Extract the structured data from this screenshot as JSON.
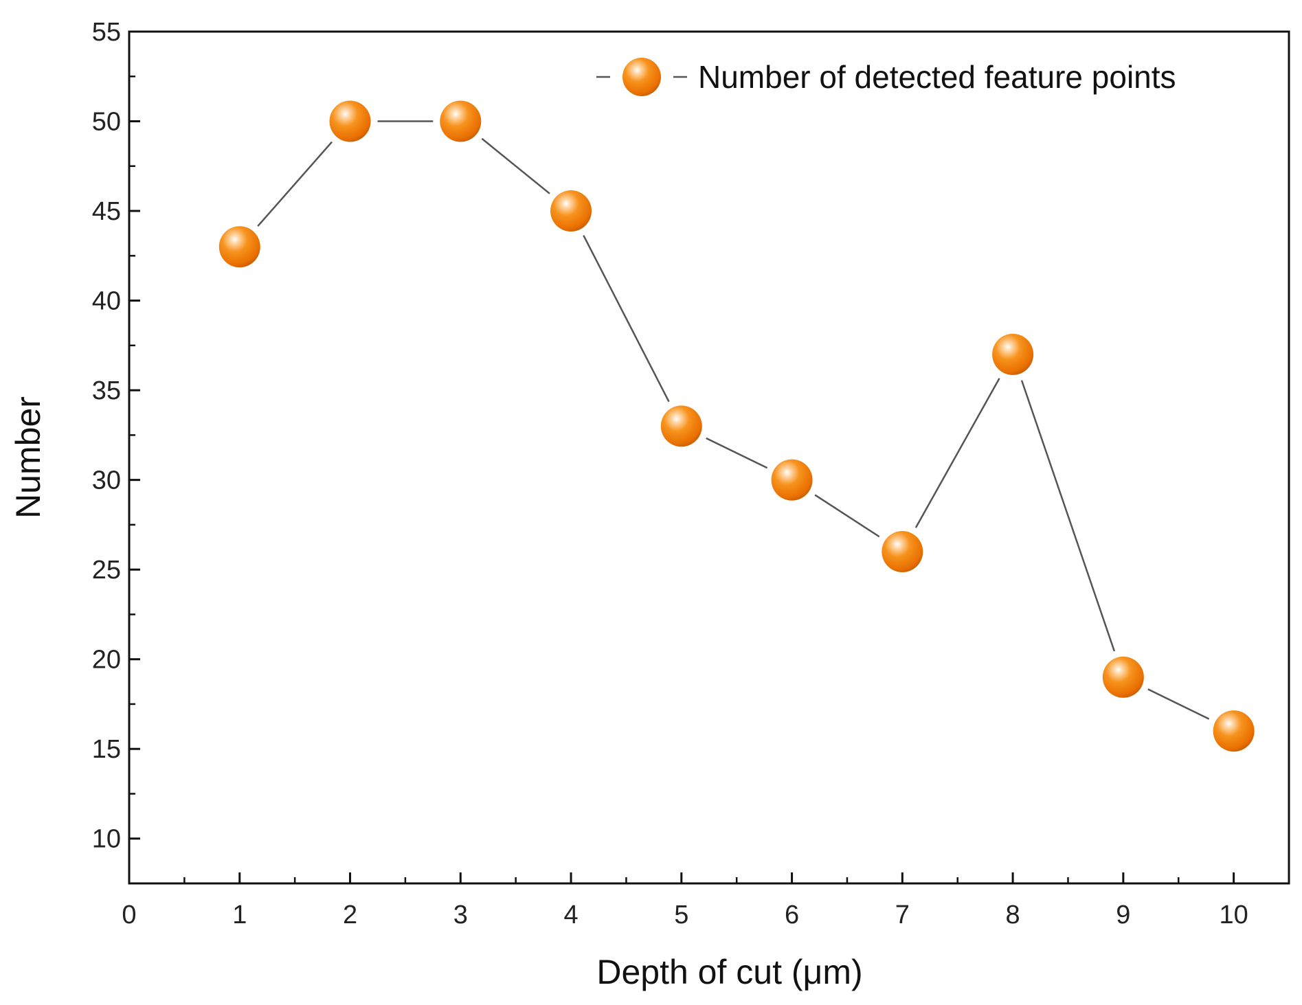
{
  "chart_data": {
    "type": "line",
    "xlabel": "Depth of cut (μm)",
    "ylabel": "Number",
    "xlim": [
      0,
      10.5
    ],
    "ylim": [
      7.5,
      55
    ],
    "xticks": [
      "0",
      "1",
      "2",
      "3",
      "4",
      "5",
      "6",
      "7",
      "8",
      "9",
      "10"
    ],
    "yticks": [
      "10",
      "15",
      "20",
      "25",
      "30",
      "35",
      "40",
      "45",
      "50",
      "55"
    ],
    "grid": false,
    "legend_position": "top-right",
    "series": [
      {
        "name": "Number of detected feature points",
        "marker": "sphere",
        "color": "#f07f0a",
        "line_color": "#555555",
        "x": [
          1,
          2,
          3,
          4,
          5,
          6,
          7,
          8,
          9,
          10
        ],
        "y": [
          43,
          50,
          50,
          45,
          33,
          30,
          26,
          37,
          19,
          16
        ]
      }
    ]
  }
}
